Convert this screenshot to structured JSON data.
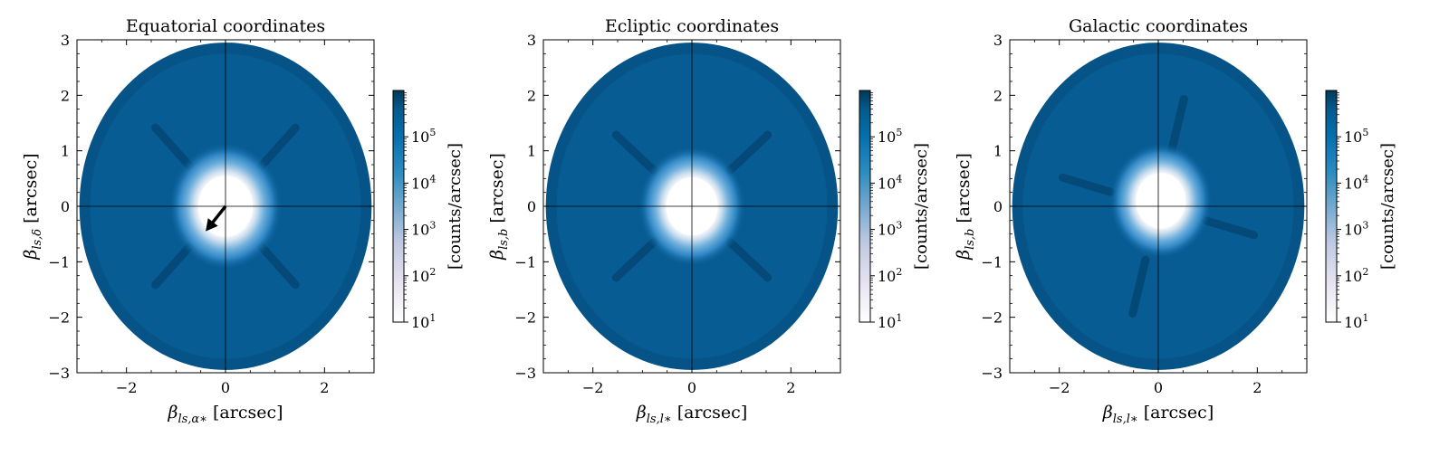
{
  "figure": {
    "colorbar_label": "[counts/arcsec]",
    "colormap": [
      "#ffffff",
      "#d0d1e6",
      "#74a9cf",
      "#2b8cbe",
      "#0570b0",
      "#045a8d",
      "#023858"
    ],
    "colorbar_ticks": [
      {
        "base": "10",
        "exp": "1"
      },
      {
        "base": "10",
        "exp": "2"
      },
      {
        "base": "10",
        "exp": "3"
      },
      {
        "base": "10",
        "exp": "4"
      },
      {
        "base": "10",
        "exp": "5"
      }
    ]
  },
  "chart_data": [
    {
      "type": "heatmap",
      "title": "Equatorial coordinates",
      "xlabel": {
        "main": "β",
        "sub": "ls,α∗",
        "unit": "[arcsec]"
      },
      "ylabel": {
        "main": "β",
        "sub": "ls,δ",
        "unit": "[arcsec]"
      },
      "xlim": [
        -3,
        3
      ],
      "ylim": [
        -3,
        3
      ],
      "x_ticks": [
        -2,
        0,
        2
      ],
      "y_ticks": [
        -3,
        -2,
        -1,
        0,
        1,
        2,
        3
      ],
      "x_tick_labels": [
        "−2",
        "0",
        "2"
      ],
      "y_tick_labels": [
        "−3",
        "−2",
        "−1",
        "0",
        "1",
        "2",
        "3"
      ],
      "color_scale": "log",
      "color_range": [
        10,
        1000000
      ],
      "disk_radius_arcsec": 2.95,
      "core_center": [
        0,
        0
      ],
      "core_radius_arcsec": 0.55,
      "spikes_angles_deg": [
        45,
        135,
        225,
        315
      ],
      "arrow": {
        "from": [
          0,
          0
        ],
        "to": [
          -0.4,
          -0.45
        ]
      }
    },
    {
      "type": "heatmap",
      "title": "Ecliptic coordinates",
      "xlabel": {
        "main": "β",
        "sub": "ls,l∗",
        "unit": "[arcsec]"
      },
      "ylabel": {
        "main": "β",
        "sub": "ls,b",
        "unit": "[arcsec]"
      },
      "xlim": [
        -3,
        3
      ],
      "ylim": [
        -3,
        3
      ],
      "x_ticks": [
        -2,
        0,
        2
      ],
      "y_ticks": [
        -3,
        -2,
        -1,
        0,
        1,
        2,
        3
      ],
      "x_tick_labels": [
        "−2",
        "0",
        "2"
      ],
      "y_tick_labels": [
        "−3",
        "−2",
        "−1",
        "0",
        "1",
        "2",
        "3"
      ],
      "color_scale": "log",
      "color_range": [
        10,
        1000000
      ],
      "disk_radius_arcsec": 2.95,
      "core_center": [
        0,
        0
      ],
      "core_radius_arcsec": 0.52,
      "spikes_angles_deg": [
        40,
        140,
        220,
        320
      ]
    },
    {
      "type": "heatmap",
      "title": "Galactic coordinates",
      "xlabel": {
        "main": "β",
        "sub": "ls,l∗",
        "unit": "[arcsec]"
      },
      "ylabel": {
        "main": "β",
        "sub": "ls,b",
        "unit": "[arcsec]"
      },
      "xlim": [
        -3,
        3
      ],
      "ylim": [
        -3,
        3
      ],
      "x_ticks": [
        -2,
        0,
        2
      ],
      "y_ticks": [
        -3,
        -2,
        -1,
        0,
        1,
        2,
        3
      ],
      "x_tick_labels": [
        "−2",
        "0",
        "2"
      ],
      "y_tick_labels": [
        "−3",
        "−2",
        "−1",
        "0",
        "1",
        "2",
        "3"
      ],
      "color_scale": "log",
      "color_range": [
        10,
        1000000
      ],
      "disk_radius_arcsec": 2.95,
      "core_center": [
        0.05,
        0.1
      ],
      "core_radius_arcsec": 0.5,
      "spikes_angles_deg": [
        75,
        165,
        255,
        345
      ]
    }
  ]
}
